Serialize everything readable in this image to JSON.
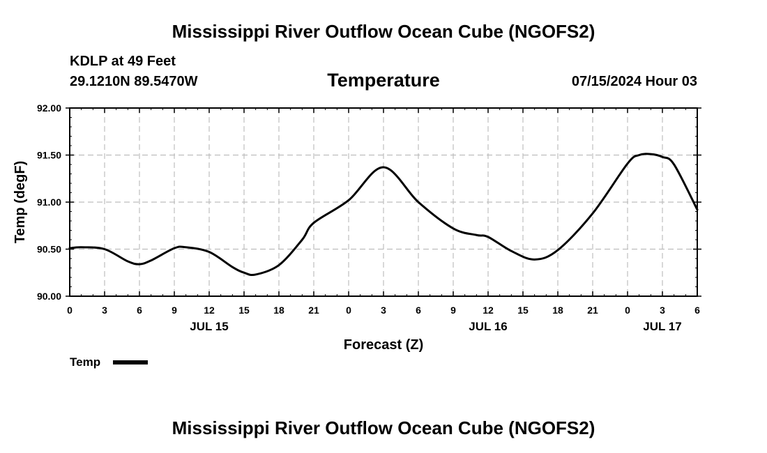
{
  "page": {
    "title_top": "Mississippi River Outflow Ocean Cube (NGOFS2)",
    "title_bottom": "Mississippi River Outflow Ocean Cube (NGOFS2)",
    "station": "KDLP at 49 Feet",
    "coords": "29.1210N  89.5470W",
    "chart_title": "Temperature",
    "datetime": "07/15/2024 Hour 03"
  },
  "colors": {
    "line": "#000000",
    "grid": "#bdbdbd"
  },
  "chart_data": {
    "type": "line",
    "title": "Temperature",
    "xlabel": "Forecast (Z)",
    "ylabel": "Temp (degF)",
    "x_unit": "hours since JUL 15 00Z",
    "xlim": [
      0,
      54
    ],
    "ylim": [
      90.0,
      92.0
    ],
    "y_ticks": [
      "90.00",
      "90.50",
      "91.00",
      "91.50",
      "92.00"
    ],
    "x_ticks": [
      {
        "x": 0,
        "label": "0"
      },
      {
        "x": 3,
        "label": "3"
      },
      {
        "x": 6,
        "label": "6"
      },
      {
        "x": 9,
        "label": "9"
      },
      {
        "x": 12,
        "label": "12"
      },
      {
        "x": 15,
        "label": "15"
      },
      {
        "x": 18,
        "label": "18"
      },
      {
        "x": 21,
        "label": "21"
      },
      {
        "x": 24,
        "label": "0"
      },
      {
        "x": 27,
        "label": "3"
      },
      {
        "x": 30,
        "label": "6"
      },
      {
        "x": 33,
        "label": "9"
      },
      {
        "x": 36,
        "label": "12"
      },
      {
        "x": 39,
        "label": "15"
      },
      {
        "x": 42,
        "label": "18"
      },
      {
        "x": 45,
        "label": "21"
      },
      {
        "x": 48,
        "label": "0"
      },
      {
        "x": 51,
        "label": "3"
      },
      {
        "x": 54,
        "label": "6"
      }
    ],
    "day_labels": [
      {
        "x": 12,
        "label": "JUL 15"
      },
      {
        "x": 36,
        "label": "JUL 16"
      },
      {
        "x": 51,
        "label": "JUL 17"
      }
    ],
    "series": [
      {
        "name": "Temp",
        "x": [
          0,
          1,
          3,
          5,
          6,
          7,
          9,
          10,
          12,
          14,
          15,
          16,
          18,
          20,
          21,
          24,
          27,
          30,
          33,
          35,
          36,
          38,
          40,
          42,
          45,
          48,
          49,
          50,
          51,
          52,
          54
        ],
        "values": [
          90.51,
          90.52,
          90.5,
          90.37,
          90.34,
          90.38,
          90.51,
          90.52,
          90.47,
          90.31,
          90.25,
          90.23,
          90.33,
          90.6,
          90.78,
          91.02,
          91.37,
          91.0,
          90.72,
          90.65,
          90.63,
          90.48,
          90.39,
          90.49,
          90.88,
          91.41,
          91.5,
          91.51,
          91.48,
          91.4,
          90.92
        ]
      }
    ],
    "legend": {
      "label": "Temp",
      "placement": "bottom-left"
    },
    "grid": true
  }
}
